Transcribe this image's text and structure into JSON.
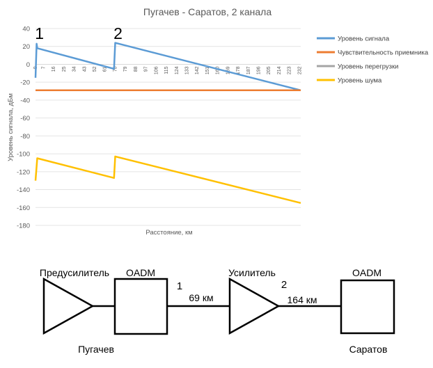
{
  "chart_data": {
    "type": "line",
    "title": "Пугачев - Саратов, 2 канала",
    "xlabel": "Расстояние, км",
    "ylabel": "Уровень сигнала, дБм",
    "ylim": [
      -180,
      40
    ],
    "yticks": [
      40,
      20,
      0,
      -20,
      -40,
      -60,
      -80,
      -100,
      -120,
      -140,
      -160,
      -180
    ],
    "xlim": [
      0,
      233
    ],
    "xticks": [
      0,
      7,
      16,
      25,
      34,
      43,
      52,
      61,
      70,
      79,
      88,
      97,
      106,
      115,
      124,
      133,
      142,
      151,
      160,
      169,
      178,
      187,
      196,
      205,
      214,
      223,
      232
    ],
    "grid": true,
    "legend_position": "right",
    "markers": [
      {
        "label": "1",
        "x": 1
      },
      {
        "label": "2",
        "x": 70
      }
    ],
    "series": [
      {
        "name": "Уровень сигнала",
        "color": "#5B9BD5",
        "points": [
          [
            0,
            -15
          ],
          [
            1,
            23
          ],
          [
            1.5,
            18
          ],
          [
            69,
            -5
          ],
          [
            70,
            24
          ],
          [
            233,
            -29
          ]
        ]
      },
      {
        "name": "Чувствительность приемника",
        "color": "#ED7D31",
        "points": [
          [
            0,
            -29
          ],
          [
            233,
            -29
          ]
        ]
      },
      {
        "name": "Уровень перегрузки",
        "color": "#A5A5A5",
        "points": []
      },
      {
        "name": "Уровень шума",
        "color": "#FFC000",
        "points": [
          [
            0,
            -130
          ],
          [
            1.5,
            -105
          ],
          [
            69,
            -127
          ],
          [
            70,
            -103
          ],
          [
            233,
            -155
          ]
        ]
      }
    ]
  },
  "diagram": {
    "left_amp_label": "Предусилитель",
    "left_oadm_label": "OADM",
    "right_amp_label": "Усилитель",
    "right_oadm_label": "OADM",
    "point1": "1",
    "point2": "2",
    "span1": "69 км",
    "span2": "164 км",
    "city_left": "Пугачев",
    "city_right": "Саратов"
  }
}
